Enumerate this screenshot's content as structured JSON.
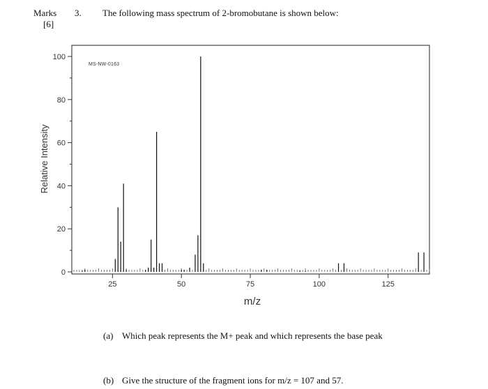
{
  "header": {
    "marks_label": "Marks",
    "marks_value": "[6]",
    "question_number": "3.",
    "question_text": "The following mass spectrum of 2-bromobutane is shown below:"
  },
  "chart_data": {
    "type": "bar",
    "title": "",
    "watermark": "MS-NW-0163",
    "xlabel": "m/z",
    "ylabel": "Relative Intensity",
    "xlim": [
      11,
      140
    ],
    "ylim": [
      0,
      100
    ],
    "x_ticks": [
      25,
      50,
      75,
      100,
      125
    ],
    "y_ticks": [
      0,
      20,
      40,
      60,
      80,
      100
    ],
    "grid": false,
    "peaks": [
      {
        "mz": 14,
        "intensity": 0.5
      },
      {
        "mz": 15,
        "intensity": 1
      },
      {
        "mz": 26,
        "intensity": 6
      },
      {
        "mz": 27,
        "intensity": 30
      },
      {
        "mz": 28,
        "intensity": 14
      },
      {
        "mz": 29,
        "intensity": 41
      },
      {
        "mz": 30,
        "intensity": 1
      },
      {
        "mz": 37,
        "intensity": 1
      },
      {
        "mz": 38,
        "intensity": 2
      },
      {
        "mz": 39,
        "intensity": 15
      },
      {
        "mz": 40,
        "intensity": 2
      },
      {
        "mz": 41,
        "intensity": 65
      },
      {
        "mz": 42,
        "intensity": 4
      },
      {
        "mz": 43,
        "intensity": 4
      },
      {
        "mz": 50,
        "intensity": 1
      },
      {
        "mz": 51,
        "intensity": 1
      },
      {
        "mz": 53,
        "intensity": 2
      },
      {
        "mz": 55,
        "intensity": 8
      },
      {
        "mz": 56,
        "intensity": 17
      },
      {
        "mz": 57,
        "intensity": 100
      },
      {
        "mz": 58,
        "intensity": 4
      },
      {
        "mz": 79,
        "intensity": 1
      },
      {
        "mz": 81,
        "intensity": 1
      },
      {
        "mz": 93,
        "intensity": 0.5
      },
      {
        "mz": 95,
        "intensity": 0.5
      },
      {
        "mz": 107,
        "intensity": 4
      },
      {
        "mz": 109,
        "intensity": 4
      },
      {
        "mz": 136,
        "intensity": 9
      },
      {
        "mz": 138,
        "intensity": 9
      }
    ]
  },
  "questions": [
    {
      "label": "(a)",
      "text": "Which peak represents the M+ peak and which represents the base peak"
    },
    {
      "label": "(b)",
      "text": "Give the structure of the fragment ions for m/z = 107 and 57."
    }
  ]
}
